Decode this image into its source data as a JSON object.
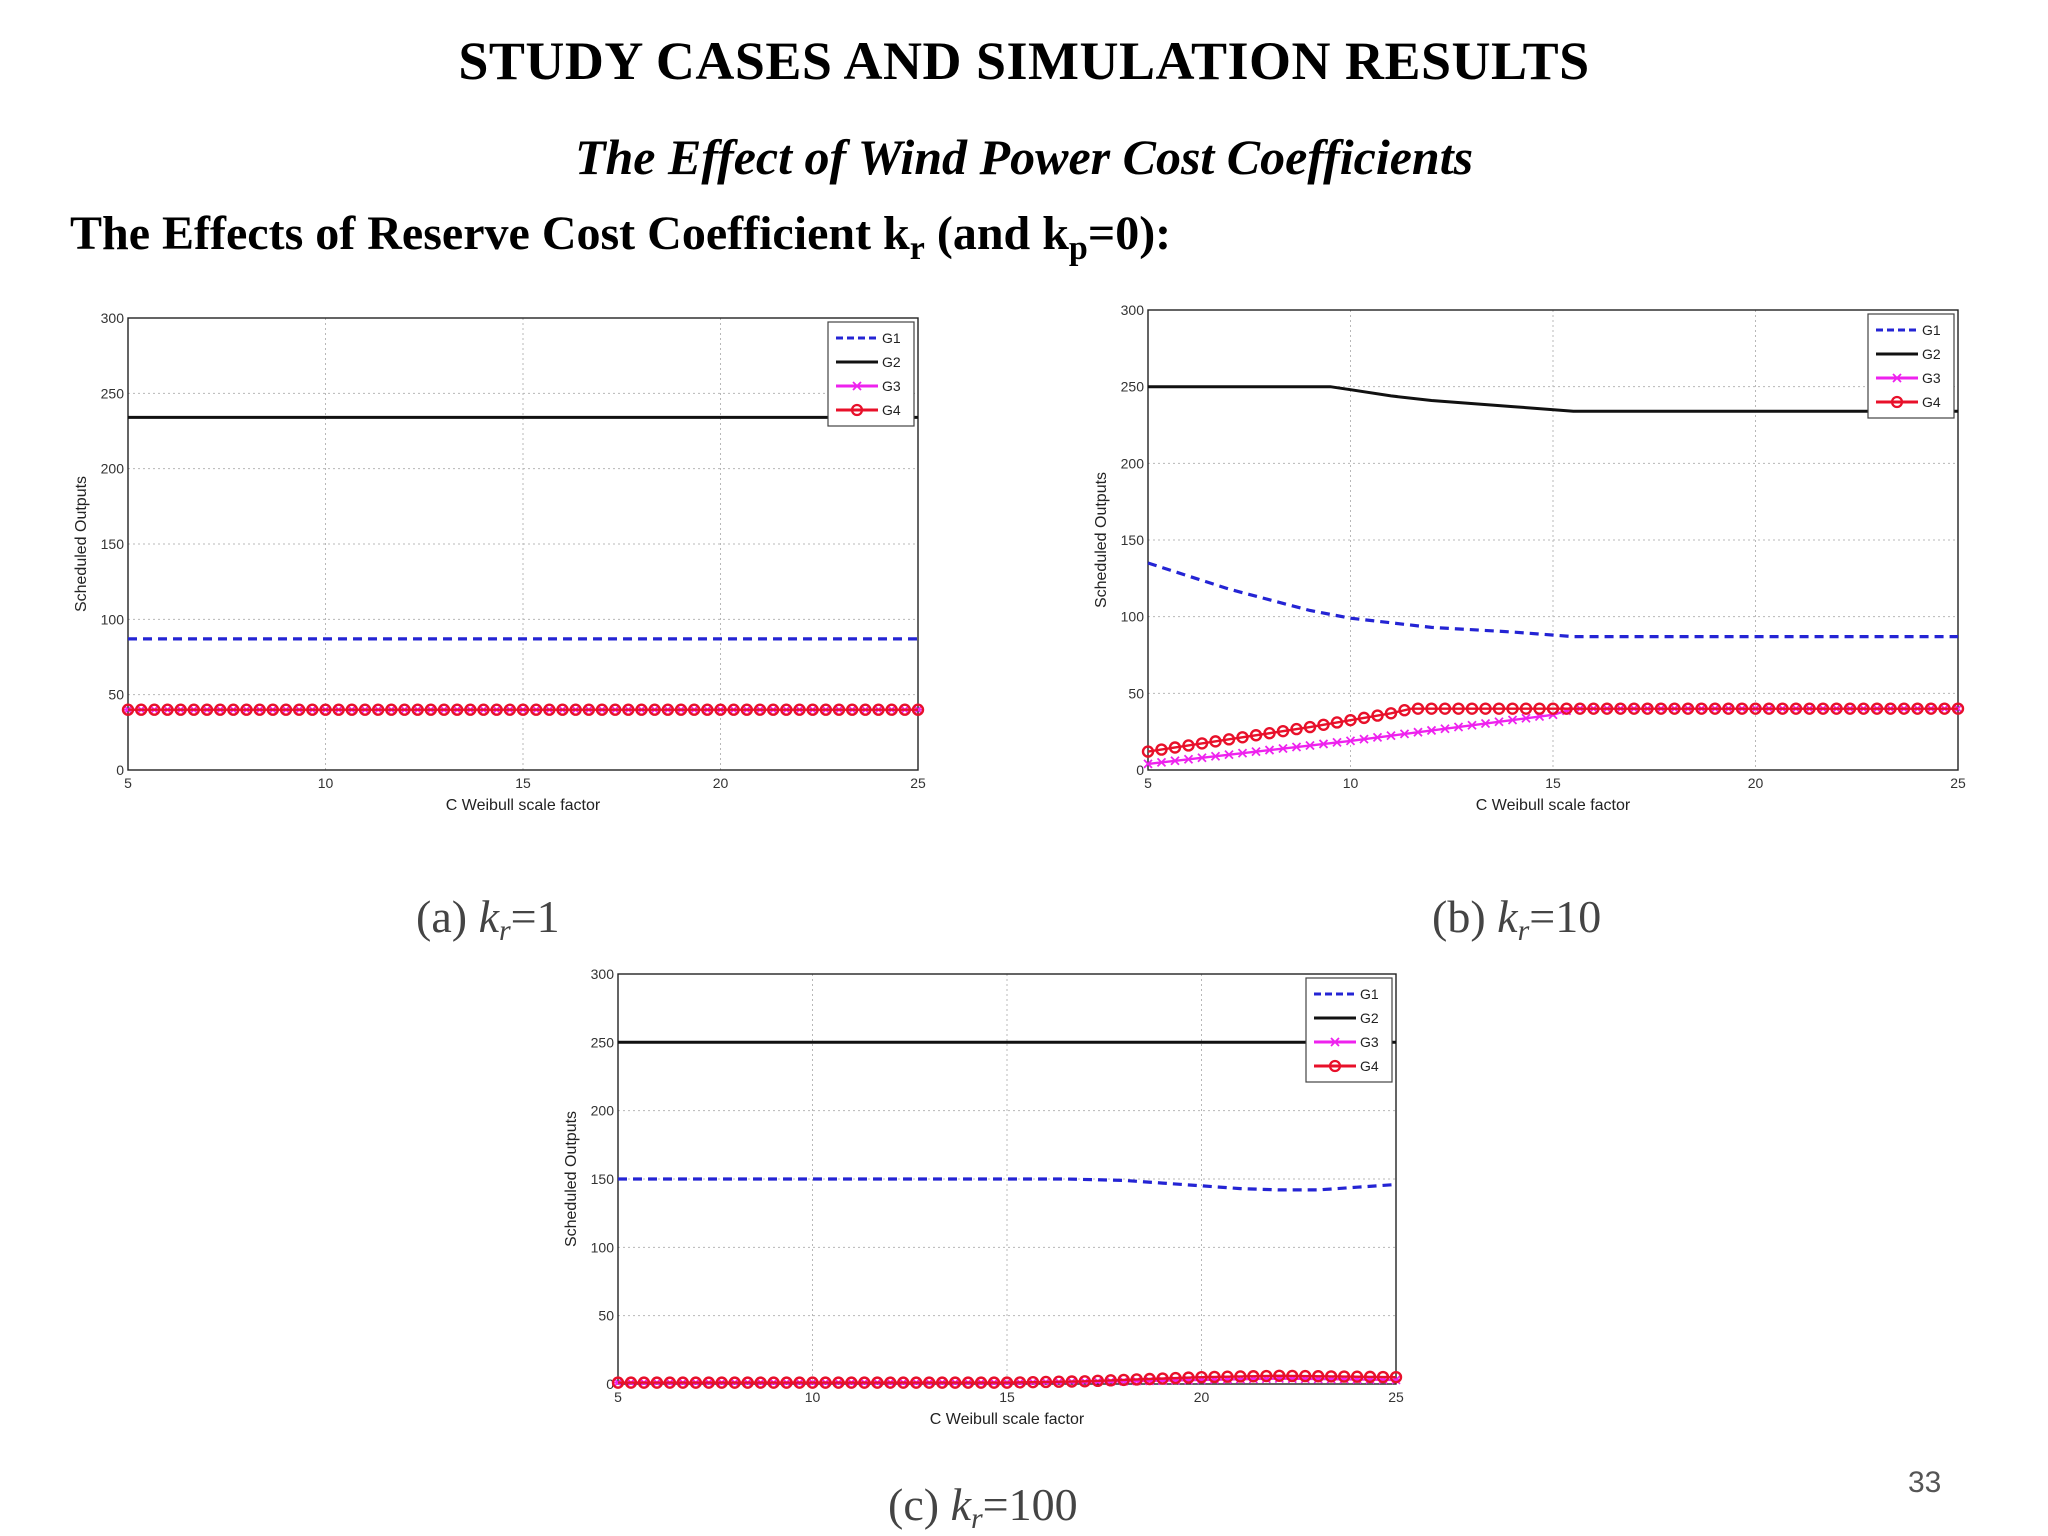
{
  "slide": {
    "title": "STUDY CASES AND SIMULATION RESULTS",
    "subtitle": "The Effect of Wind Power Cost Coefficients",
    "heading": {
      "prefix": "The Effects of  Reserve Cost Coefficient k",
      "sub1": "r",
      "middle": " (and k",
      "sub2": "p",
      "suffix": "=0):"
    },
    "page_number": "33"
  },
  "captions": [
    {
      "open": "(a) ",
      "k": "k",
      "sub": "r",
      "eq": "=1"
    },
    {
      "open": "(b) ",
      "k": "k",
      "sub": "r",
      "eq": "=10"
    },
    {
      "open": "(c) ",
      "k": "k",
      "sub": "r",
      "eq": "=100"
    }
  ],
  "colors": {
    "G1": "#2424d4",
    "G2": "#111111",
    "G3": "#ee22ee",
    "G4": "#e8102a"
  },
  "chart_data": [
    {
      "type": "line",
      "xlabel": "C Weibull scale factor",
      "ylabel": "Scheduled Outputs",
      "xlim": [
        5,
        25
      ],
      "ylim": [
        0,
        300
      ],
      "xticks": [
        5,
        10,
        15,
        20,
        25
      ],
      "yticks": [
        0,
        50,
        100,
        150,
        200,
        250,
        300
      ],
      "grid": true,
      "legend": "top-right",
      "series": [
        {
          "name": "G1",
          "style": "dashed",
          "x": [
            5,
            25
          ],
          "y": [
            87,
            87
          ]
        },
        {
          "name": "G2",
          "style": "solid",
          "x": [
            5,
            25
          ],
          "y": [
            234,
            234
          ]
        },
        {
          "name": "G3",
          "style": "star",
          "x": [
            5,
            25
          ],
          "y": [
            40,
            40
          ]
        },
        {
          "name": "G4",
          "style": "circle",
          "x": [
            5,
            25
          ],
          "y": [
            40,
            40
          ]
        }
      ]
    },
    {
      "type": "line",
      "xlabel": "C Weibull scale factor",
      "ylabel": "Scheduled Outputs",
      "xlim": [
        5,
        25
      ],
      "ylim": [
        0,
        300
      ],
      "xticks": [
        5,
        10,
        15,
        20,
        25
      ],
      "yticks": [
        0,
        50,
        100,
        150,
        200,
        250,
        300
      ],
      "grid": true,
      "legend": "top-right",
      "series": [
        {
          "name": "G1",
          "style": "dashed",
          "x": [
            5,
            7,
            9,
            10,
            12,
            14,
            15.5,
            18,
            20,
            25
          ],
          "y": [
            135,
            118,
            104,
            99,
            93,
            90,
            87,
            87,
            87,
            87
          ]
        },
        {
          "name": "G2",
          "style": "solid",
          "x": [
            5,
            7,
            9,
            9.5,
            10,
            11,
            12,
            14,
            15.5,
            18,
            20,
            25
          ],
          "y": [
            250,
            250,
            250,
            250,
            248,
            244,
            241,
            237,
            234,
            234,
            234,
            234
          ]
        },
        {
          "name": "G3",
          "style": "x",
          "x": [
            5,
            10,
            15,
            15.5,
            20,
            25
          ],
          "y": [
            4,
            19,
            36,
            40,
            40,
            40
          ]
        },
        {
          "name": "G4",
          "style": "circle",
          "x": [
            5,
            7,
            9,
            11,
            11.5,
            13,
            15,
            20,
            25
          ],
          "y": [
            12,
            20,
            28,
            37,
            40,
            40,
            40,
            40,
            40
          ]
        }
      ]
    },
    {
      "type": "line",
      "xlabel": "C Weibull scale factor",
      "ylabel": "Scheduled Outputs",
      "xlim": [
        5,
        25
      ],
      "ylim": [
        0,
        300
      ],
      "xticks": [
        5,
        10,
        15,
        20,
        25
      ],
      "yticks": [
        0,
        50,
        100,
        150,
        200,
        250,
        300
      ],
      "grid": true,
      "legend": "top-right",
      "series": [
        {
          "name": "G1",
          "style": "dashed",
          "x": [
            5,
            10,
            15,
            16.5,
            18,
            19,
            20,
            21,
            22,
            23,
            24,
            25
          ],
          "y": [
            150,
            150,
            150,
            150,
            149,
            147,
            145,
            143,
            142,
            142,
            144,
            146
          ]
        },
        {
          "name": "G2",
          "style": "solid",
          "x": [
            5,
            25
          ],
          "y": [
            250,
            250
          ]
        },
        {
          "name": "G3",
          "style": "star",
          "x": [
            5,
            15,
            18,
            20,
            22,
            25
          ],
          "y": [
            1,
            1,
            2,
            3,
            4,
            3
          ]
        },
        {
          "name": "G4",
          "style": "circle",
          "x": [
            5,
            15,
            17,
            20,
            22,
            25
          ],
          "y": [
            1,
            1,
            2,
            5,
            6,
            5
          ]
        }
      ]
    }
  ]
}
